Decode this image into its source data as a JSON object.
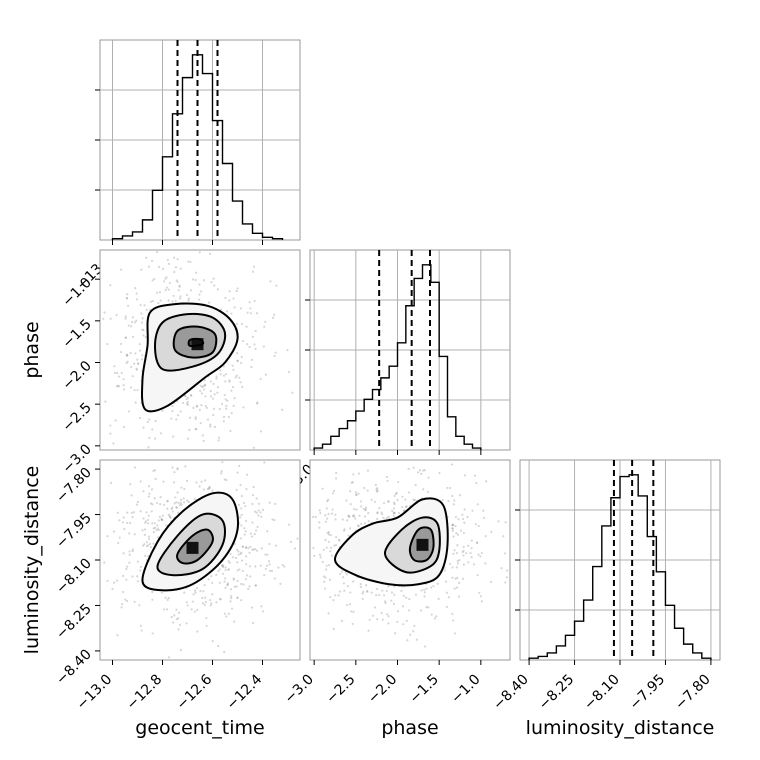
{
  "chart_data": [
    {
      "type": "histogram",
      "parameter": "geocent_time",
      "xlim": [
        -13.05,
        -12.25
      ],
      "bin_edges": [
        -13.0,
        -12.96,
        -12.92,
        -12.88,
        -12.84,
        -12.8,
        -12.76,
        -12.72,
        -12.68,
        -12.64,
        -12.6,
        -12.56,
        -12.52,
        -12.48,
        -12.44,
        -12.4,
        -12.36,
        -12.32
      ],
      "counts": [
        1,
        3,
        6,
        15,
        37,
        62,
        94,
        121,
        138,
        124,
        89,
        57,
        29,
        12,
        5,
        2,
        1
      ],
      "quantiles": [
        -12.74,
        -12.66,
        -12.58
      ],
      "xticks": [
        -13.0,
        -12.8,
        -12.6,
        -12.4
      ],
      "xtick_labels": [
        "−13.0",
        "−12.8",
        "−12.6",
        "−12.4"
      ],
      "xlabel": "geocent_time",
      "grid": true
    },
    {
      "type": "histogram",
      "parameter": "phase",
      "xlim": [
        -3.05,
        -0.65
      ],
      "bin_edges": [
        -3.0,
        -2.9,
        -2.8,
        -2.7,
        -2.6,
        -2.5,
        -2.4,
        -2.3,
        -2.2,
        -2.1,
        -2.0,
        -1.9,
        -1.8,
        -1.7,
        -1.6,
        -1.5,
        -1.4,
        -1.3,
        -1.2,
        -1.1,
        -1.0
      ],
      "counts": [
        1,
        3,
        7,
        11,
        15,
        20,
        26,
        31,
        37,
        43,
        55,
        74,
        88,
        95,
        86,
        48,
        17,
        7,
        3,
        1
      ],
      "quantiles": [
        -2.22,
        -1.83,
        -1.61
      ],
      "xticks": [
        -3.0,
        -2.5,
        -2.0,
        -1.5,
        -1.0
      ],
      "xtick_labels": [
        "−3.0",
        "−2.5",
        "−2.0",
        "−1.5",
        "−1.0"
      ],
      "xlabel": "phase",
      "grid": true
    },
    {
      "type": "histogram",
      "parameter": "luminosity_distance",
      "xlim": [
        -8.43,
        -7.77
      ],
      "bin_edges": [
        -8.4,
        -8.37,
        -8.34,
        -8.31,
        -8.28,
        -8.25,
        -8.22,
        -8.19,
        -8.16,
        -8.13,
        -8.1,
        -8.07,
        -8.04,
        -8.01,
        -7.98,
        -7.95,
        -7.92,
        -7.89,
        -7.86,
        -7.83,
        -7.8
      ],
      "counts": [
        1,
        2,
        4,
        8,
        14,
        22,
        34,
        53,
        76,
        92,
        104,
        105,
        93,
        70,
        50,
        31,
        18,
        9,
        4,
        1
      ],
      "quantiles": [
        -8.12,
        -8.06,
        -7.99
      ],
      "xticks": [
        -8.4,
        -8.25,
        -8.1,
        -7.95,
        -7.8
      ],
      "xtick_labels": [
        "−8.40",
        "−8.25",
        "−8.10",
        "−7.95",
        "−7.80"
      ],
      "xlabel": "luminosity_distance",
      "grid": true
    },
    {
      "type": "heatmap",
      "x_parameter": "geocent_time",
      "y_parameter": "phase",
      "xlim": [
        -13.05,
        -12.25
      ],
      "ylim": [
        -3.05,
        -0.65
      ],
      "peak": [
        -12.66,
        -1.78
      ],
      "contours": [
        [
          [
            -12.85,
            -1.4
          ],
          [
            -12.75,
            -1.3
          ],
          [
            -12.62,
            -1.32
          ],
          [
            -12.53,
            -1.48
          ],
          [
            -12.5,
            -1.72
          ],
          [
            -12.55,
            -2.0
          ],
          [
            -12.63,
            -2.18
          ],
          [
            -12.78,
            -2.52
          ],
          [
            -12.87,
            -2.56
          ],
          [
            -12.88,
            -2.2
          ],
          [
            -12.86,
            -1.8
          ]
        ],
        [
          [
            -12.8,
            -1.52
          ],
          [
            -12.7,
            -1.42
          ],
          [
            -12.6,
            -1.46
          ],
          [
            -12.55,
            -1.65
          ],
          [
            -12.58,
            -1.9
          ],
          [
            -12.68,
            -2.05
          ],
          [
            -12.8,
            -2.08
          ],
          [
            -12.83,
            -1.8
          ]
        ],
        [
          [
            -12.74,
            -1.62
          ],
          [
            -12.66,
            -1.57
          ],
          [
            -12.59,
            -1.66
          ],
          [
            -12.6,
            -1.88
          ],
          [
            -12.68,
            -1.94
          ],
          [
            -12.75,
            -1.85
          ]
        ],
        [
          [
            -12.69,
            -1.73
          ],
          [
            -12.65,
            -1.72
          ],
          [
            -12.64,
            -1.78
          ],
          [
            -12.69,
            -1.8
          ]
        ]
      ],
      "yticks": [
        -3.0,
        -2.5,
        -2.0,
        -1.5,
        -1.0
      ],
      "ytick_labels": [
        "−3.0",
        "−2.5",
        "−2.0",
        "−1.5",
        "−1.0"
      ],
      "ylabel": "phase"
    },
    {
      "type": "heatmap",
      "x_parameter": "geocent_time",
      "y_parameter": "luminosity_distance",
      "xlim": [
        -13.05,
        -12.25
      ],
      "ylim": [
        -8.43,
        -7.77
      ],
      "peak": [
        -12.68,
        -8.06
      ],
      "contours": [
        [
          [
            -12.88,
            -8.17
          ],
          [
            -12.82,
            -8.04
          ],
          [
            -12.72,
            -7.94
          ],
          [
            -12.6,
            -7.88
          ],
          [
            -12.52,
            -7.9
          ],
          [
            -12.5,
            -8.0
          ],
          [
            -12.56,
            -8.1
          ],
          [
            -12.68,
            -8.18
          ],
          [
            -12.8,
            -8.2
          ]
        ],
        [
          [
            -12.82,
            -8.12
          ],
          [
            -12.74,
            -8.02
          ],
          [
            -12.64,
            -7.95
          ],
          [
            -12.56,
            -7.97
          ],
          [
            -12.56,
            -8.05
          ],
          [
            -12.64,
            -8.13
          ],
          [
            -12.76,
            -8.15
          ]
        ],
        [
          [
            -12.74,
            -8.08
          ],
          [
            -12.68,
            -8.02
          ],
          [
            -12.62,
            -8.0
          ],
          [
            -12.6,
            -8.04
          ],
          [
            -12.66,
            -8.1
          ],
          [
            -12.72,
            -8.11
          ]
        ]
      ],
      "yticks": [
        -8.4,
        -8.25,
        -8.1,
        -7.95,
        -7.8
      ],
      "ytick_labels": [
        "−8.40",
        "−8.25",
        "−8.10",
        "−7.95",
        "−7.80"
      ],
      "xticks": [
        -13.0,
        -12.8,
        -12.6,
        -12.4
      ],
      "xtick_labels": [
        "−13.0",
        "−12.8",
        "−12.6",
        "−12.4"
      ],
      "xlabel": "geocent_time",
      "ylabel": "luminosity_distance"
    },
    {
      "type": "heatmap",
      "x_parameter": "phase",
      "y_parameter": "luminosity_distance",
      "xlim": [
        -3.05,
        -0.65
      ],
      "ylim": [
        -8.43,
        -7.77
      ],
      "peak": [
        -1.7,
        -8.05
      ],
      "contours": [
        [
          [
            -2.75,
            -8.1
          ],
          [
            -2.55,
            -8.02
          ],
          [
            -2.3,
            -7.98
          ],
          [
            -2.0,
            -7.96
          ],
          [
            -1.7,
            -7.9
          ],
          [
            -1.45,
            -7.92
          ],
          [
            -1.4,
            -8.05
          ],
          [
            -1.5,
            -8.15
          ],
          [
            -1.75,
            -8.18
          ],
          [
            -2.1,
            -8.18
          ],
          [
            -2.5,
            -8.15
          ]
        ],
        [
          [
            -2.15,
            -8.08
          ],
          [
            -1.95,
            -8.0
          ],
          [
            -1.7,
            -7.96
          ],
          [
            -1.52,
            -7.98
          ],
          [
            -1.5,
            -8.07
          ],
          [
            -1.6,
            -8.12
          ],
          [
            -1.9,
            -8.14
          ]
        ],
        [
          [
            -1.85,
            -8.06
          ],
          [
            -1.75,
            -8.0
          ],
          [
            -1.6,
            -8.0
          ],
          [
            -1.57,
            -8.06
          ],
          [
            -1.65,
            -8.1
          ],
          [
            -1.8,
            -8.1
          ]
        ]
      ],
      "xticks": [
        -3.0,
        -2.5,
        -2.0,
        -1.5,
        -1.0
      ],
      "xtick_labels": [
        "−3.0",
        "−2.5",
        "−2.0",
        "−1.5",
        "−1.0"
      ],
      "xlabel": "phase"
    }
  ]
}
